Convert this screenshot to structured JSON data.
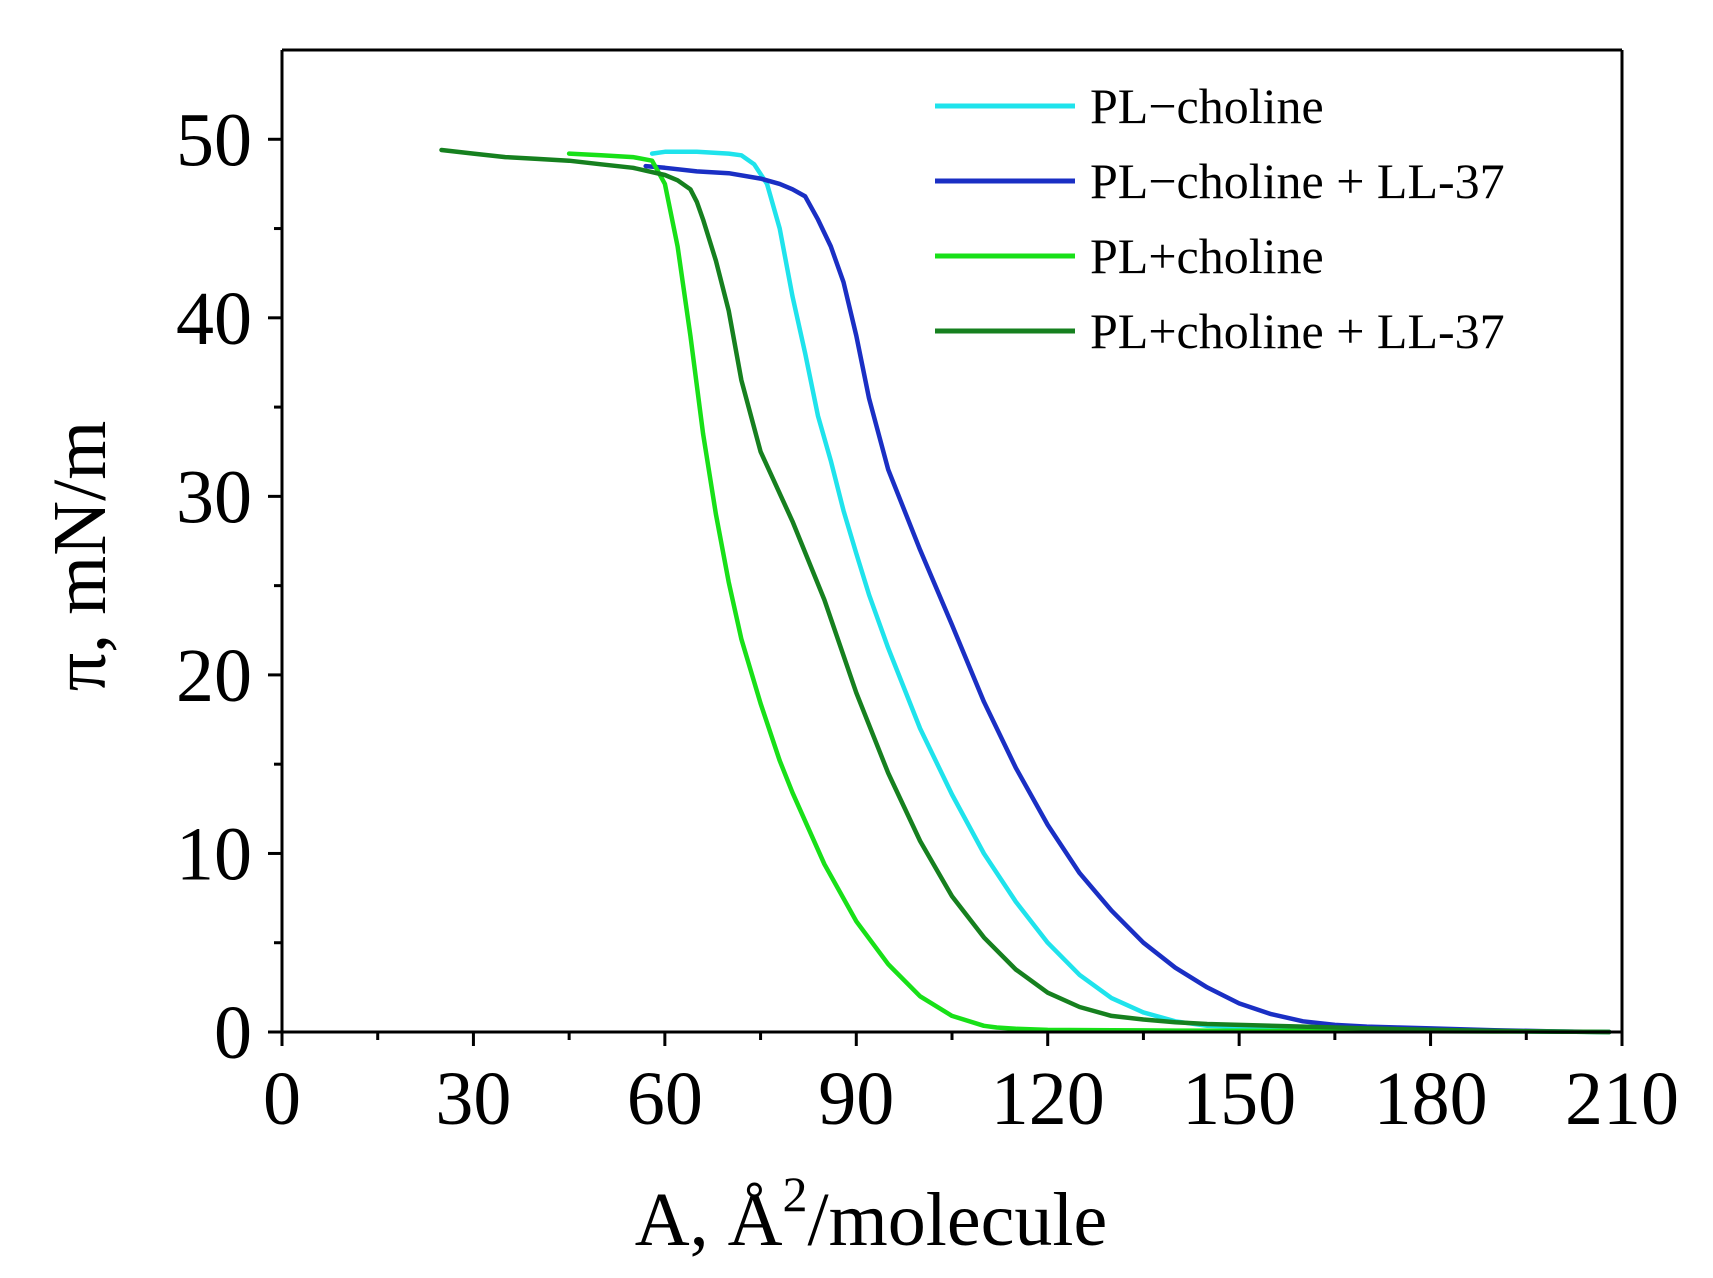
{
  "chart_data": {
    "type": "line",
    "title": "",
    "xlabel": "A, Å²/molecule",
    "xlabel_parts": {
      "prefix": "A, Å",
      "superscript": "2",
      "suffix": "/molecule"
    },
    "ylabel": "π, mN/m",
    "xlim": [
      0,
      210
    ],
    "ylim": [
      0,
      55
    ],
    "x_ticks": [
      0,
      30,
      60,
      90,
      120,
      150,
      180,
      210
    ],
    "y_ticks": [
      0,
      10,
      20,
      30,
      40,
      50
    ],
    "x_tick_labels": [
      "0",
      "30",
      "60",
      "90",
      "120",
      "150",
      "180",
      "210"
    ],
    "y_tick_labels": [
      "0",
      "10",
      "20",
      "30",
      "40",
      "50"
    ],
    "grid": false,
    "legend_position": "top-right",
    "series": [
      {
        "name": "PL−choline",
        "color": "#1fe3ec",
        "x": [
          58,
          60,
          65,
          70,
          72,
          74,
          76,
          78,
          80,
          82,
          84,
          86,
          88,
          90,
          92,
          95,
          100,
          105,
          110,
          115,
          120,
          125,
          130,
          135,
          140,
          145,
          150,
          155,
          160,
          170,
          180,
          190,
          200,
          208
        ],
        "y": [
          49.2,
          49.3,
          49.3,
          49.2,
          49.1,
          48.6,
          47.5,
          45,
          41.2,
          38,
          34.5,
          32,
          29.2,
          26.8,
          24.5,
          21.5,
          17,
          13.3,
          10,
          7.3,
          5,
          3.2,
          1.9,
          1.1,
          0.6,
          0.35,
          0.3,
          0.25,
          0.2,
          0.15,
          0.1,
          0.05,
          0.02,
          0
        ]
      },
      {
        "name": "PL−choline + LL-37",
        "color": "#1a2fc4",
        "x": [
          57,
          60,
          65,
          70,
          75,
          78,
          80,
          82,
          84,
          86,
          88,
          90,
          92,
          95,
          100,
          105,
          110,
          115,
          120,
          125,
          130,
          135,
          140,
          145,
          150,
          155,
          160,
          165,
          170,
          175,
          180,
          190,
          200,
          208
        ],
        "y": [
          48.5,
          48.4,
          48.2,
          48.1,
          47.8,
          47.5,
          47.2,
          46.8,
          45.5,
          44,
          42,
          39,
          35.5,
          31.5,
          27,
          22.8,
          18.5,
          14.8,
          11.6,
          8.9,
          6.8,
          5,
          3.6,
          2.5,
          1.6,
          1,
          0.6,
          0.4,
          0.3,
          0.25,
          0.2,
          0.1,
          0.03,
          0
        ]
      },
      {
        "name": "PL+choline",
        "color": "#18e018",
        "x": [
          45,
          50,
          55,
          58,
          60,
          62,
          64,
          66,
          68,
          70,
          72,
          75,
          78,
          80,
          85,
          90,
          95,
          100,
          105,
          110,
          112,
          115,
          120,
          130,
          140,
          150,
          160,
          170,
          180,
          190,
          200,
          208
        ],
        "y": [
          49.2,
          49.1,
          49,
          48.8,
          47.5,
          44,
          39,
          33.5,
          29,
          25.2,
          22,
          18.4,
          15.2,
          13.4,
          9.4,
          6.2,
          3.8,
          2,
          0.9,
          0.35,
          0.25,
          0.18,
          0.12,
          0.1,
          0.08,
          0.07,
          0.06,
          0.05,
          0.04,
          0.03,
          0.02,
          0
        ]
      },
      {
        "name": "PL+choline + LL-37",
        "color": "#16801f",
        "x": [
          25,
          30,
          35,
          40,
          45,
          50,
          55,
          60,
          62,
          64,
          65,
          66,
          68,
          70,
          72,
          75,
          80,
          85,
          90,
          95,
          100,
          105,
          110,
          115,
          120,
          125,
          130,
          135,
          140,
          145,
          150,
          160,
          170,
          180,
          190,
          200,
          208
        ],
        "y": [
          49.4,
          49.2,
          49,
          48.9,
          48.8,
          48.6,
          48.4,
          48,
          47.7,
          47.2,
          46.5,
          45.5,
          43.2,
          40.4,
          36.5,
          32.5,
          28.6,
          24.2,
          19,
          14.5,
          10.7,
          7.6,
          5.3,
          3.5,
          2.2,
          1.4,
          0.9,
          0.7,
          0.55,
          0.45,
          0.4,
          0.3,
          0.2,
          0.12,
          0.06,
          0.02,
          0
        ]
      }
    ]
  }
}
